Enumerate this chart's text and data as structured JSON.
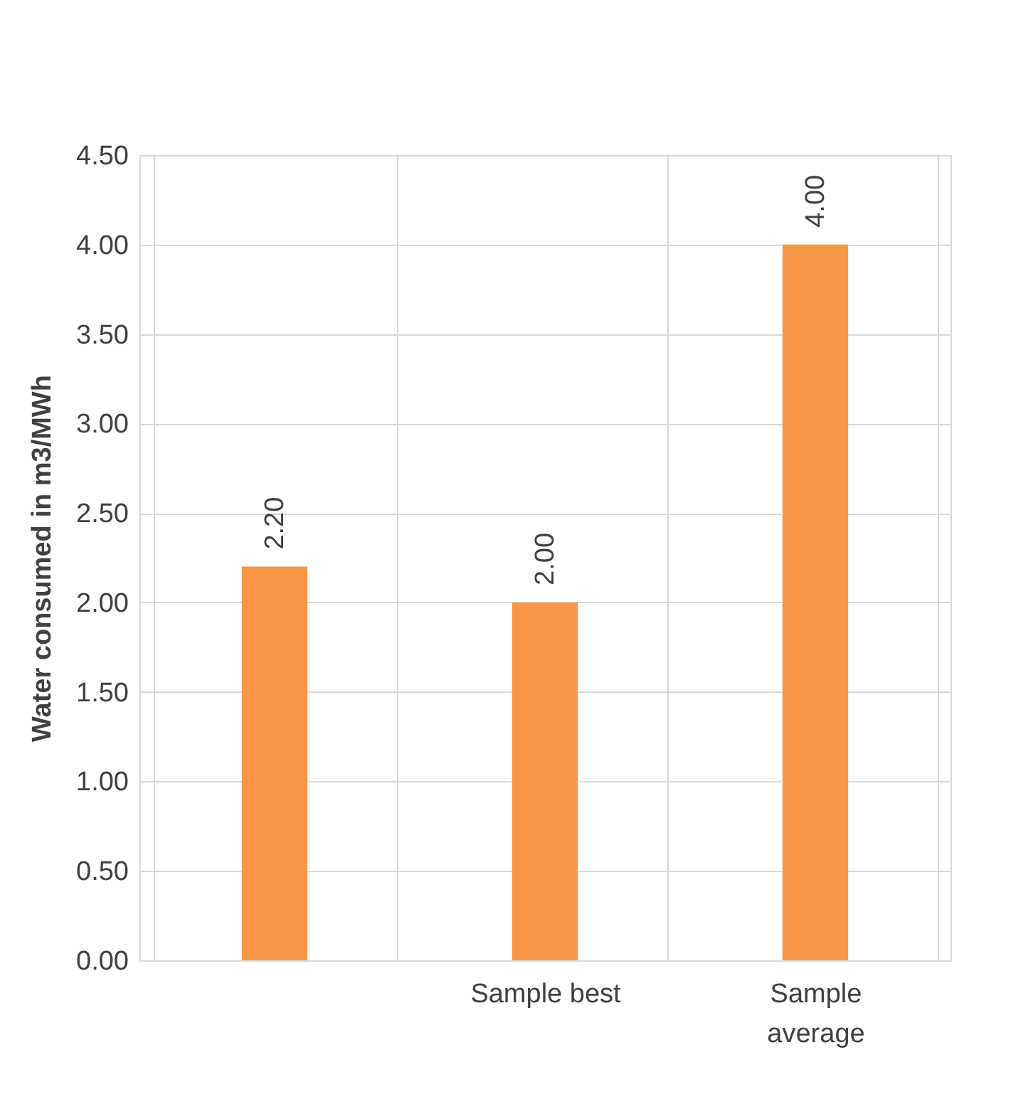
{
  "chart_data": {
    "type": "bar",
    "ylabel": "Water consumed in m3/MWh",
    "categories": [
      null,
      "Sample best",
      "Sample average"
    ],
    "values": [
      2.2,
      2.0,
      4.0
    ],
    "value_labels": [
      "2.20",
      "2.00",
      "4.00"
    ],
    "color": "#f79646",
    "ylim": [
      0,
      4.5
    ],
    "yticks": [
      {
        "value": 0,
        "label": "0.00"
      },
      {
        "value": 0.5,
        "label": "0.50"
      },
      {
        "value": 1,
        "label": "1.00"
      },
      {
        "value": 1.5,
        "label": "1.50"
      },
      {
        "value": 2,
        "label": "2.00"
      },
      {
        "value": 2.5,
        "label": "2.50"
      },
      {
        "value": 3,
        "label": "3.00"
      },
      {
        "value": 3.5,
        "label": "3.50"
      },
      {
        "value": 4,
        "label": "4.00"
      },
      {
        "value": 4.5,
        "label": "4.50"
      }
    ],
    "grid": true
  }
}
